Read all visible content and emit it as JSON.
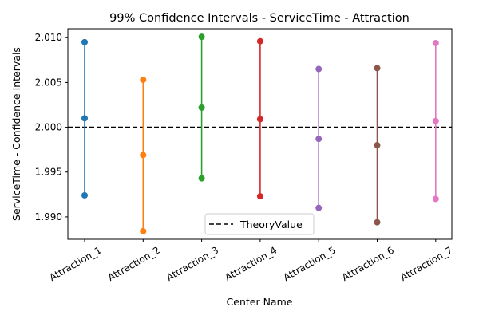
{
  "chart_data": {
    "type": "errorbar",
    "title": "99% Confidence Intervals - ServiceTime - Attraction",
    "xlabel": "Center Name",
    "ylabel": "ServiceTime - Confidence Intervals",
    "categories": [
      "Attraction_1",
      "Attraction_2",
      "Attraction_3",
      "Attraction_4",
      "Attraction_5",
      "Attraction_6",
      "Attraction_7"
    ],
    "series": [
      {
        "category": "Attraction_1",
        "lower": 1.9924,
        "mean": 2.001,
        "upper": 2.0095,
        "color": "#1f77b4"
      },
      {
        "category": "Attraction_2",
        "lower": 1.9884,
        "mean": 1.9969,
        "upper": 2.0053,
        "color": "#ff7f0e"
      },
      {
        "category": "Attraction_3",
        "lower": 1.9943,
        "mean": 2.0022,
        "upper": 2.0101,
        "color": "#2ca02c"
      },
      {
        "category": "Attraction_4",
        "lower": 1.9923,
        "mean": 2.0009,
        "upper": 2.0096,
        "color": "#d62728"
      },
      {
        "category": "Attraction_5",
        "lower": 1.991,
        "mean": 1.9987,
        "upper": 2.0065,
        "color": "#9467bd"
      },
      {
        "category": "Attraction_6",
        "lower": 1.9894,
        "mean": 1.998,
        "upper": 2.0066,
        "color": "#8c564b"
      },
      {
        "category": "Attraction_7",
        "lower": 1.992,
        "mean": 2.0007,
        "upper": 2.0094,
        "color": "#e377c2"
      }
    ],
    "reference_line": {
      "name": "TheoryValue",
      "value": 2.0,
      "style": "dashed",
      "color": "#000000"
    },
    "ylim": [
      1.9875,
      2.011
    ],
    "yticks": [
      1.99,
      1.995,
      2.0,
      2.005,
      2.01
    ],
    "ytick_labels": [
      "1.990",
      "1.995",
      "2.000",
      "2.005",
      "2.010"
    ],
    "legend": {
      "position": "bottom-center",
      "entries": [
        "TheoryValue"
      ]
    },
    "grid": false
  }
}
